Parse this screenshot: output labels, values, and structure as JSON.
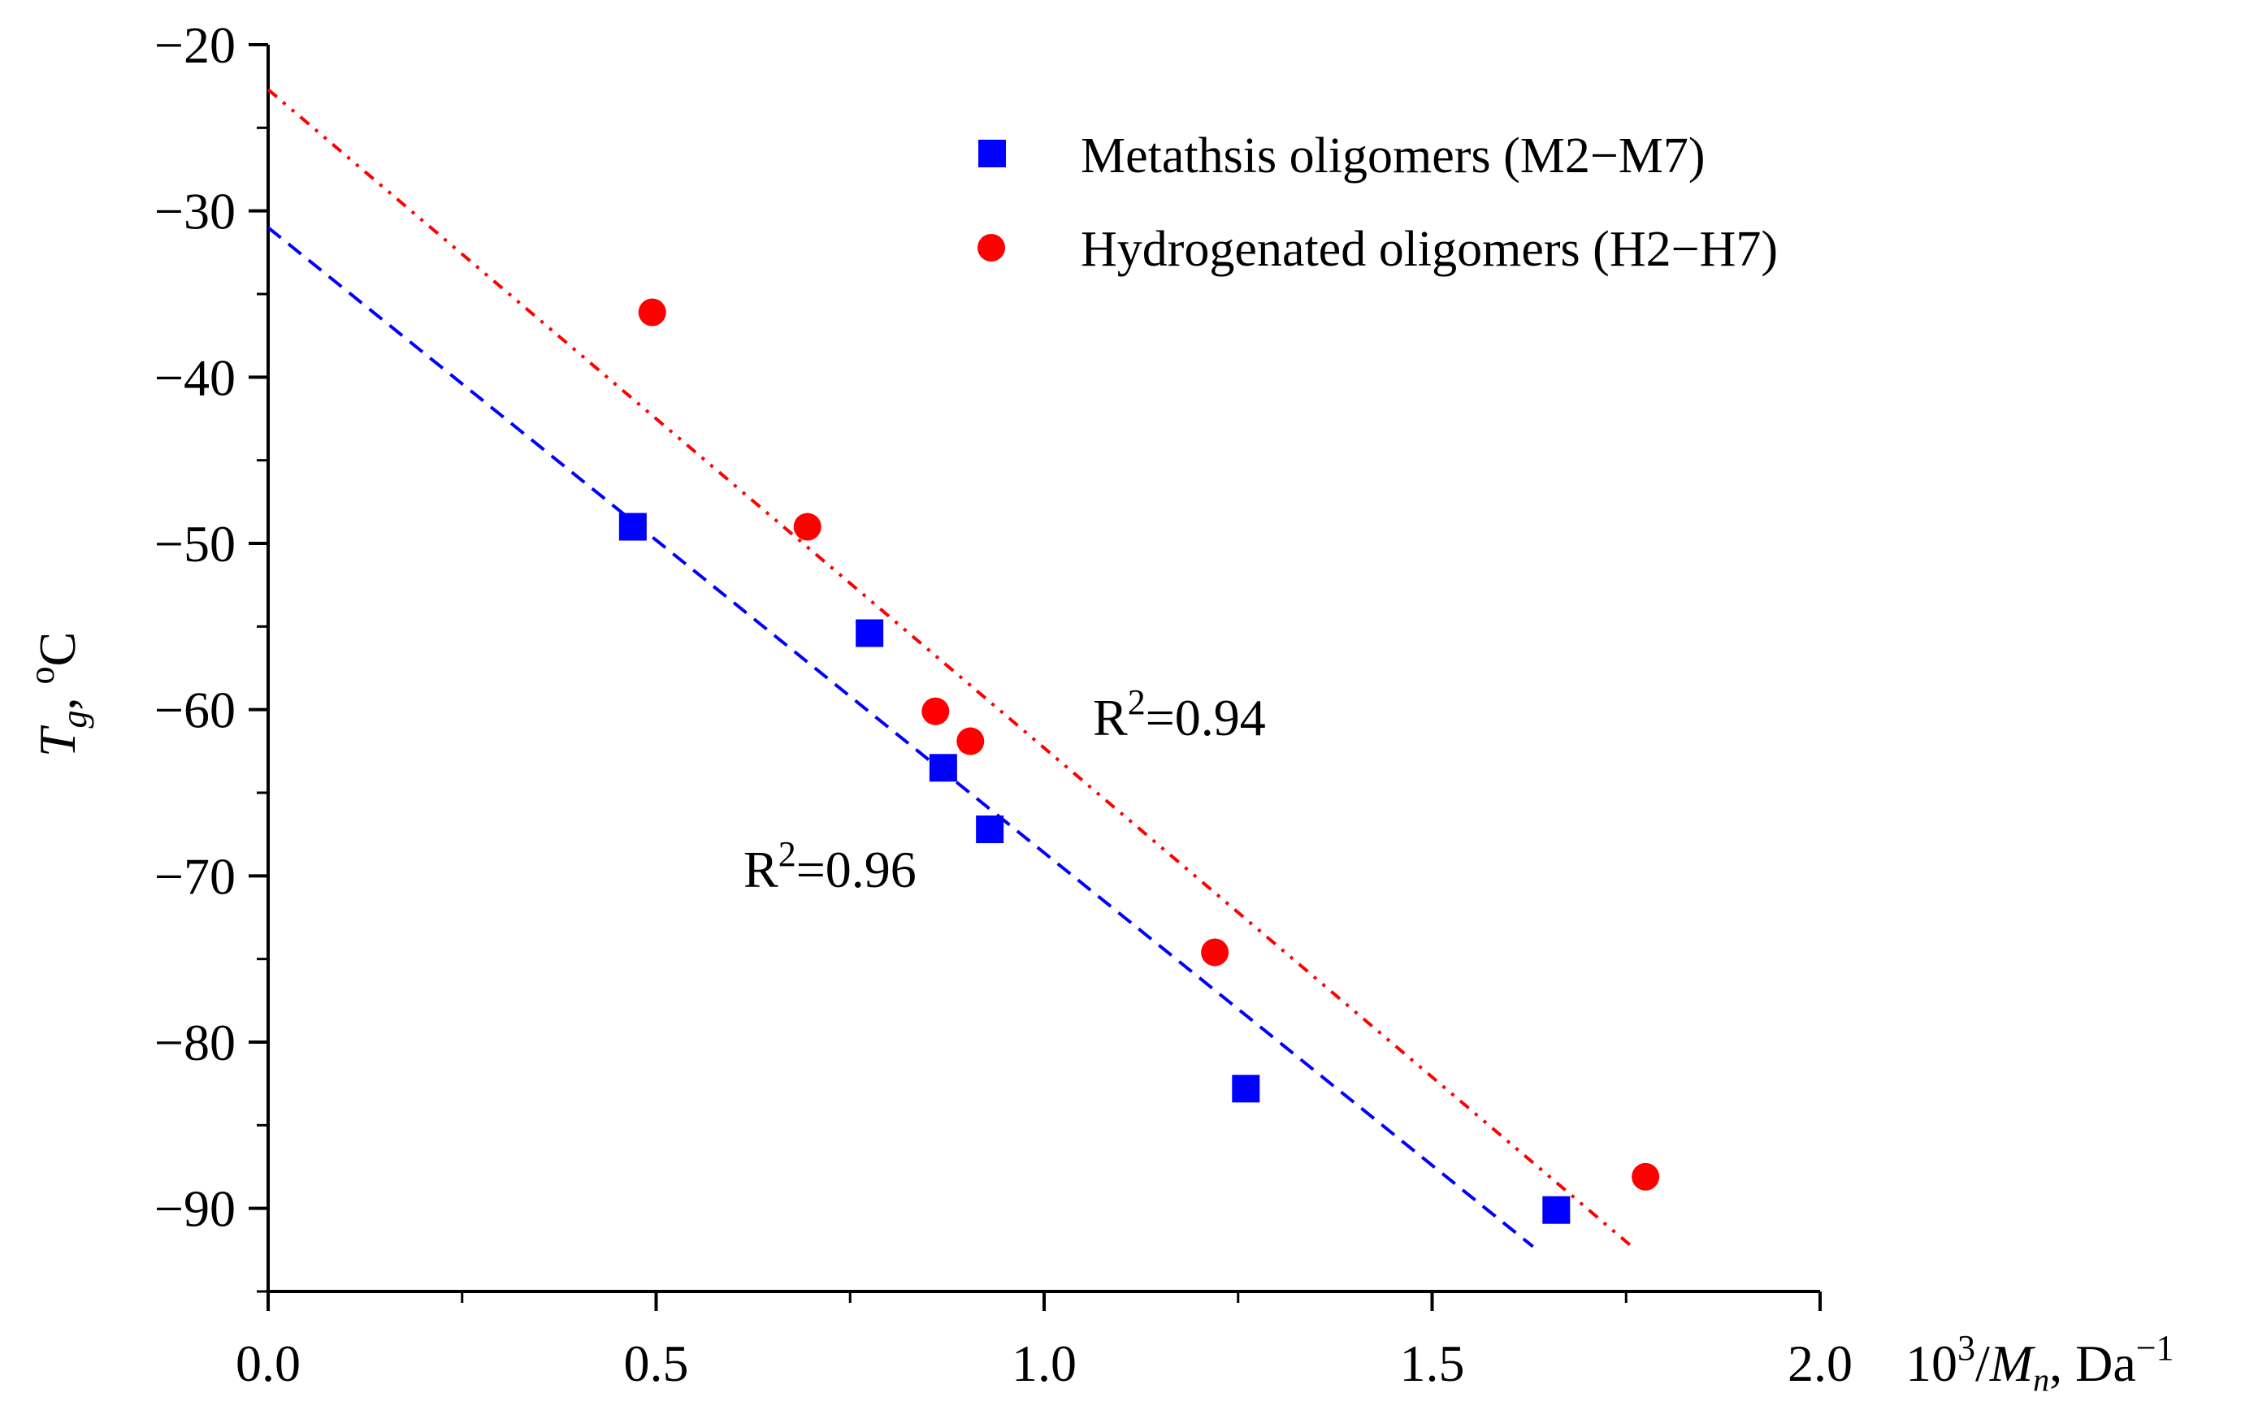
{
  "chart_data": {
    "type": "scatter",
    "title": "",
    "xlabel": {
      "base": "10",
      "exp": "3",
      "slash": "/",
      "sym": "M",
      "sub": "n",
      "unit": ", Da",
      "unit_exp": "−1"
    },
    "ylabel": {
      "sym": "T",
      "sub": "g",
      "comma": ", ",
      "deg": "o",
      "unit": "C"
    },
    "xlim": [
      0,
      2.0
    ],
    "ylim": [
      -95,
      -20
    ],
    "x_ticks": [
      {
        "value": 0,
        "label": "0.0"
      },
      {
        "value": 0.5,
        "label": "0.5"
      },
      {
        "value": 1.0,
        "label": "1.0"
      },
      {
        "value": 1.5,
        "label": "1.5"
      },
      {
        "value": 2.0,
        "label": "2.0"
      }
    ],
    "y_ticks": [
      {
        "value": -20,
        "label": "−20"
      },
      {
        "value": -30,
        "label": "−30"
      },
      {
        "value": -40,
        "label": "−40"
      },
      {
        "value": -50,
        "label": "−50"
      },
      {
        "value": -60,
        "label": "−60"
      },
      {
        "value": -70,
        "label": "−70"
      },
      {
        "value": -80,
        "label": "−80"
      },
      {
        "value": -90,
        "label": "−90"
      }
    ],
    "x_minor_step": 0.25,
    "y_minor_step": 5,
    "series": [
      {
        "name": "Metathsis oligomers (M2−M7)",
        "marker": "square",
        "color": "#0000ff",
        "points": [
          [
            0.47,
            -49.0
          ],
          [
            0.775,
            -55.4
          ],
          [
            0.87,
            -63.5
          ],
          [
            0.93,
            -67.2
          ],
          [
            1.26,
            -82.8
          ],
          [
            1.66,
            -90.1
          ]
        ],
        "fit": {
          "x0": 0,
          "y0": -31.0,
          "x1": 1.63,
          "y1": -92.3,
          "style": "dashed",
          "r2_label": {
            "base": "R",
            "exp": "2",
            "value": "=0.96"
          }
        }
      },
      {
        "name": "Hydrogenated oligomers (H2−H7)",
        "marker": "circle",
        "color": "#ff0000",
        "points": [
          [
            0.495,
            -36.1
          ],
          [
            0.695,
            -49.0
          ],
          [
            0.86,
            -60.1
          ],
          [
            0.905,
            -61.9
          ],
          [
            1.22,
            -74.6
          ],
          [
            1.775,
            -88.1
          ]
        ],
        "fit": {
          "x0": 0,
          "y0": -22.7,
          "x1": 1.755,
          "y1": -92.2,
          "style": "dash-dot-dot",
          "r2_label": {
            "base": "R",
            "exp": "2",
            "value": "=0.94"
          }
        }
      }
    ],
    "legend": {
      "position": "top-right"
    }
  }
}
